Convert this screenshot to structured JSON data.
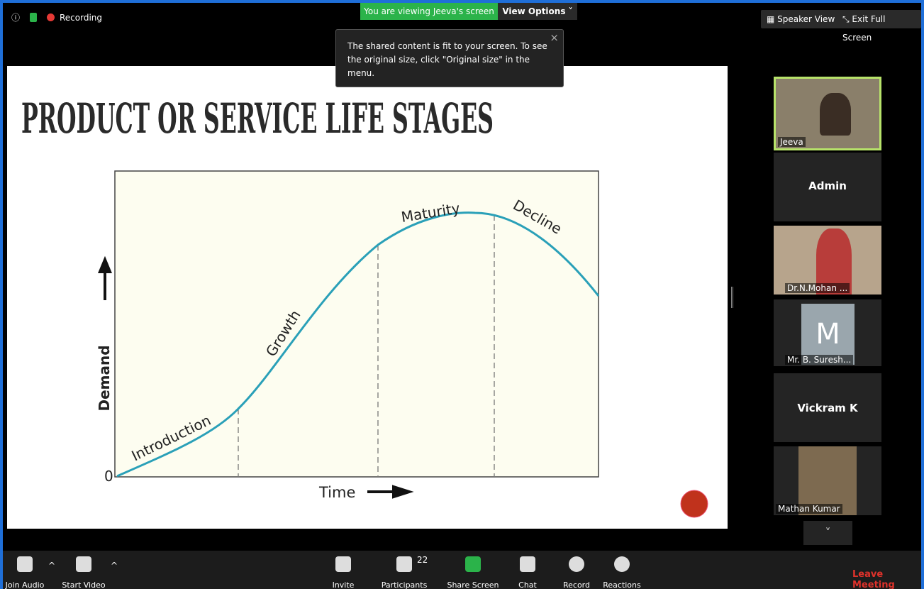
{
  "top_bar": {
    "status": "Recording",
    "banner": "You are viewing Jeeva's screen",
    "view_options": "View Options",
    "speaker_view": "Speaker View",
    "exit_full_screen": "Exit Full Screen"
  },
  "tooltip": {
    "text": "The shared content is fit to your screen. To see the original size, click \"Original size\" in the menu."
  },
  "slide": {
    "title": "PRODUCT OR SERVICE LIFE STAGES",
    "y_label": "Demand",
    "x_label": "Time",
    "origin": "0",
    "stages": [
      "Introduction",
      "Growth",
      "Maturity",
      "Decline"
    ]
  },
  "tiles": [
    {
      "name": "Jeeva"
    },
    {
      "name": "Admin"
    },
    {
      "name": "Dr.N.Mohan ..."
    },
    {
      "name": "Mr. B. Suresh...",
      "avatar": "M"
    },
    {
      "name": "Vickram K"
    },
    {
      "name": "Mathan Kumar"
    }
  ],
  "toolbar": {
    "join_audio": "Join Audio",
    "start_video": "Start Video",
    "invite": "Invite",
    "participants": "Participants",
    "participant_count": "22",
    "share_screen": "Share Screen",
    "chat": "Chat",
    "record": "Record",
    "reactions": "Reactions",
    "leave_meeting": "Leave Meeting"
  }
}
